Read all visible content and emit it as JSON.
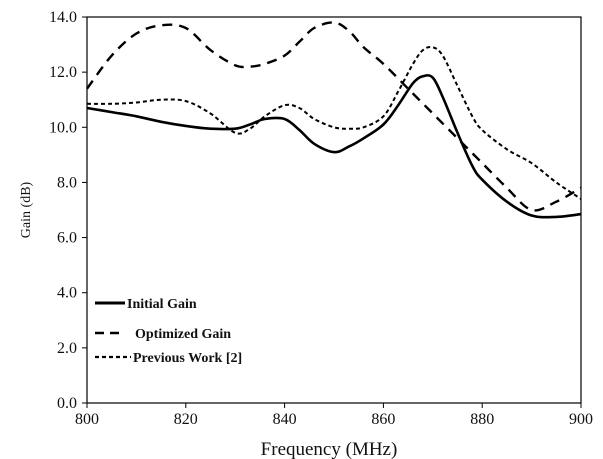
{
  "chart_data": {
    "type": "line",
    "title": "",
    "xlabel": "Frequency (MHz)",
    "ylabel": "Gain (dB)",
    "xlim": [
      800,
      900
    ],
    "ylim": [
      0,
      14
    ],
    "xticks": [
      "800",
      "820",
      "840",
      "860",
      "880",
      "900"
    ],
    "yticks": [
      "0.0",
      "2.0",
      "4.0",
      "6.0",
      "8.0",
      "10.0",
      "12.0",
      "14.0"
    ],
    "grid": false,
    "legend_position": "bottom-left",
    "series": [
      {
        "name": "Initial Gain",
        "style": "solid",
        "x": [
          800,
          805,
          810,
          815,
          820,
          825,
          830,
          833,
          836,
          840,
          843,
          846,
          850,
          853,
          856,
          860,
          863,
          866,
          868,
          870,
          872,
          875,
          878,
          880,
          885,
          890,
          895,
          900
        ],
        "y": [
          10.7,
          10.55,
          10.4,
          10.2,
          10.05,
          9.95,
          9.95,
          10.1,
          10.3,
          10.3,
          9.9,
          9.4,
          9.1,
          9.3,
          9.6,
          10.1,
          10.8,
          11.6,
          11.85,
          11.8,
          11.1,
          9.8,
          8.6,
          8.1,
          7.3,
          6.8,
          6.75,
          6.85
        ]
      },
      {
        "name": "Optimized Gain",
        "style": "long-dash",
        "x": [
          800,
          805,
          810,
          815,
          820,
          825,
          830,
          833,
          836,
          840,
          843,
          846,
          850,
          853,
          856,
          860,
          865,
          870,
          875,
          880,
          885,
          890,
          895,
          900
        ],
        "y": [
          11.4,
          12.6,
          13.4,
          13.7,
          13.6,
          12.8,
          12.25,
          12.2,
          12.3,
          12.6,
          13.1,
          13.6,
          13.8,
          13.5,
          12.9,
          12.3,
          11.4,
          10.5,
          9.6,
          8.7,
          7.8,
          7.0,
          7.3,
          7.8
        ]
      },
      {
        "name": "Previous Work [2]",
        "style": "short-dash",
        "x": [
          800,
          805,
          810,
          815,
          820,
          825,
          830,
          833,
          836,
          840,
          843,
          846,
          850,
          853,
          856,
          860,
          863,
          866,
          868,
          870,
          872,
          875,
          878,
          880,
          885,
          890,
          895,
          900
        ],
        "y": [
          10.85,
          10.85,
          10.9,
          11.0,
          10.95,
          10.5,
          9.8,
          9.95,
          10.4,
          10.8,
          10.7,
          10.3,
          10.0,
          9.95,
          10.0,
          10.4,
          11.3,
          12.3,
          12.8,
          12.9,
          12.6,
          11.5,
          10.4,
          9.9,
          9.2,
          8.7,
          8.0,
          7.4
        ]
      }
    ]
  }
}
